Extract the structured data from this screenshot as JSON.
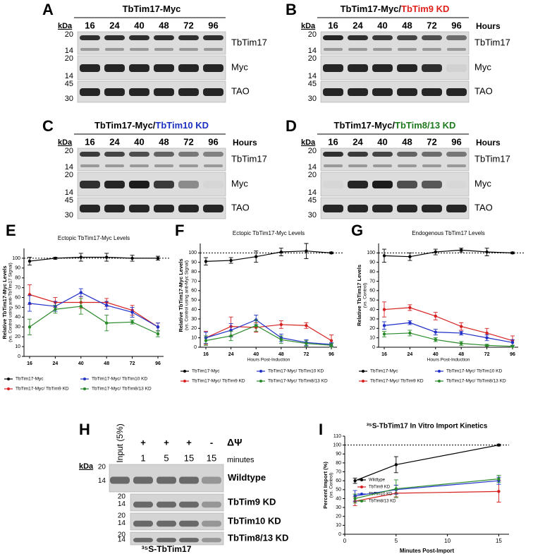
{
  "blots": [
    {
      "letter": "A",
      "title": [
        {
          "text": "TbTim17-Myc",
          "color": "#000000"
        }
      ],
      "unit": "kDa",
      "lanes": [
        "16",
        "24",
        "40",
        "48",
        "72",
        "96"
      ],
      "rows": [
        {
          "markers": [
            "20",
            "14"
          ],
          "label": "TbTim17"
        },
        {
          "markers": [
            "20",
            "14"
          ],
          "label": "Myc"
        },
        {
          "markers": [
            "45",
            "30"
          ],
          "label": "TAO"
        }
      ]
    },
    {
      "letter": "B",
      "title": [
        {
          "text": "TbTim17-Myc/",
          "color": "#000000"
        },
        {
          "text": "TbTim9 KD",
          "color": "#e0201b"
        }
      ],
      "unit": "kDa",
      "hours_label": "Hours",
      "lanes": [
        "16",
        "24",
        "40",
        "48",
        "72",
        "96"
      ],
      "rows": [
        {
          "markers": [
            "20",
            "14"
          ],
          "label": "TbTim17"
        },
        {
          "markers": [
            "20",
            "14"
          ],
          "label": "Myc"
        },
        {
          "markers": [
            "45",
            "30"
          ],
          "label": "TAO"
        }
      ]
    },
    {
      "letter": "C",
      "title": [
        {
          "text": "TbTim17-Myc/",
          "color": "#000000"
        },
        {
          "text": "TbTim10 KD",
          "color": "#1b2fc0"
        }
      ],
      "unit": "kDa",
      "hours_label": "Hours",
      "lanes": [
        "16",
        "24",
        "40",
        "48",
        "72",
        "96"
      ],
      "rows": [
        {
          "markers": [
            "20",
            "14"
          ],
          "label": "TbTim17"
        },
        {
          "markers": [
            "20",
            "14"
          ],
          "label": "Myc"
        },
        {
          "markers": [
            "45",
            "30"
          ],
          "label": "TAO"
        }
      ]
    },
    {
      "letter": "D",
      "title": [
        {
          "text": "TbTim17-Myc/",
          "color": "#000000"
        },
        {
          "text": "TbTim8/13 KD",
          "color": "#1f7a1f"
        }
      ],
      "unit": "kDa",
      "hours_label": "Hours",
      "lanes": [
        "16",
        "24",
        "40",
        "48",
        "72",
        "96"
      ],
      "rows": [
        {
          "markers": [
            "20",
            "14"
          ],
          "label": "TbTim17"
        },
        {
          "markers": [
            "20",
            "14"
          ],
          "label": "Myc"
        },
        {
          "markers": [
            "45",
            "30"
          ],
          "label": "TAO"
        }
      ]
    }
  ],
  "panel_h": {
    "letter": "H",
    "unit": "kDa",
    "input_label": "Input (5%)",
    "delta_psi": "ΔΨ",
    "psi_signs": [
      "+",
      "+",
      "+",
      "-"
    ],
    "minutes": [
      "1",
      "5",
      "15",
      "15"
    ],
    "minutes_label": "minutes",
    "rows": [
      {
        "markers": [
          "20",
          "14"
        ],
        "label": "Wildtype",
        "color": "#000000"
      },
      {
        "markers": [
          "20",
          "14"
        ],
        "label": "TbTim9 KD",
        "color": "#e0201b"
      },
      {
        "markers": [
          "20",
          "14"
        ],
        "label": "TbTim10 KD",
        "color": "#1b2fc0"
      },
      {
        "markers": [
          "20",
          "14"
        ],
        "label": "TbTim8/13 KD",
        "color": "#1f7a1f"
      }
    ],
    "footer": "³⁵S-TbTim17"
  },
  "chart_data": [
    {
      "type": "line",
      "letter": "E",
      "title": "Ectopic TbTim17-Myc Levels",
      "ylabel": [
        "Relative TbTim17-Myc Levels",
        "(vs. Control using anti-TbTim17 Signal)"
      ],
      "categories": [
        "16",
        "24",
        "40",
        "48",
        "72",
        "96"
      ],
      "ylim": [
        0,
        110
      ],
      "yticks": [
        0,
        10,
        20,
        30,
        40,
        50,
        60,
        70,
        80,
        90,
        100
      ],
      "ref_line": 100,
      "series": [
        {
          "name": "TbTim17-Myc",
          "color": "#000000",
          "values": [
            97,
            100,
            101,
            101,
            100,
            100
          ],
          "errors": [
            4,
            1,
            4,
            4,
            3,
            2
          ]
        },
        {
          "name": "TbTim17-Myc/ TbTim9 KD",
          "color": "#d62020",
          "values": [
            63,
            55,
            55,
            55,
            47,
            30
          ],
          "errors": [
            10,
            5,
            6,
            4,
            5,
            4
          ]
        },
        {
          "name": "TbTim17-Myc/ TbTim10 KD",
          "color": "#2030c8",
          "values": [
            54,
            51,
            65,
            52,
            45,
            30
          ],
          "errors": [
            8,
            5,
            4,
            4,
            5,
            4
          ]
        },
        {
          "name": "TbTim17-Myc/ TbTim8/13 KD",
          "color": "#2a8a2a",
          "values": [
            30,
            48,
            51,
            34,
            35,
            23
          ],
          "errors": [
            8,
            4,
            8,
            8,
            2,
            3
          ]
        }
      ]
    },
    {
      "type": "line",
      "letter": "F",
      "title": "Ectopic TbTim17-Myc Levels",
      "ylabel": [
        "Relative TbTim17-Myc Levels",
        "(vs. Control using anti-Myc Signal)"
      ],
      "xlabel": "Hours Post-Induction",
      "categories": [
        "16",
        "24",
        "40",
        "48",
        "72",
        "96"
      ],
      "ylim": [
        0,
        110
      ],
      "yticks": [
        0,
        10,
        20,
        30,
        40,
        50,
        60,
        70,
        80,
        90,
        100
      ],
      "ref_line": 100,
      "series": [
        {
          "name": "TbTim17-Myc",
          "color": "#000000",
          "values": [
            91,
            92,
            96,
            101,
            102,
            100
          ],
          "errors": [
            4,
            3,
            6,
            4,
            8,
            1
          ]
        },
        {
          "name": "TbTim17-Myc/ TbTim9 KD",
          "color": "#d62020",
          "values": [
            10,
            22,
            21,
            24,
            23,
            7
          ],
          "errors": [
            7,
            10,
            5,
            4,
            3,
            6
          ]
        },
        {
          "name": "TbTim17-Myc/ TbTim10 KD",
          "color": "#2030c8",
          "values": [
            10,
            18,
            29,
            10,
            5,
            3
          ],
          "errors": [
            6,
            7,
            5,
            4,
            3,
            2
          ]
        },
        {
          "name": "TbTim17-Myc/ TbTim8/13 KD",
          "color": "#2a8a2a",
          "values": [
            7,
            12,
            23,
            8,
            4,
            2
          ],
          "errors": [
            5,
            5,
            6,
            4,
            3,
            2
          ]
        }
      ]
    },
    {
      "type": "line",
      "letter": "G",
      "title": "Endogenous TbTim17 Levels",
      "ylabel": [
        "Relative TbTim17 Levels",
        "(vs. Control)"
      ],
      "xlabel": "Hours Post-Induction",
      "categories": [
        "16",
        "24",
        "40",
        "48",
        "72",
        "96"
      ],
      "ylim": [
        0,
        110
      ],
      "yticks": [
        0,
        10,
        20,
        30,
        40,
        50,
        60,
        70,
        80,
        90,
        100
      ],
      "ref_line": 100,
      "series": [
        {
          "name": "TbTim17-Myc",
          "color": "#000000",
          "values": [
            97,
            96,
            101,
            103,
            101,
            100
          ],
          "errors": [
            7,
            4,
            3,
            2,
            4,
            1
          ]
        },
        {
          "name": "TbTim17-Myc/ TbTim9 KD",
          "color": "#d62020",
          "values": [
            40,
            42,
            33,
            22,
            15,
            7
          ],
          "errors": [
            8,
            3,
            4,
            4,
            5,
            5
          ]
        },
        {
          "name": "TbTim17-Myc/ TbTim10 KD",
          "color": "#2030c8",
          "values": [
            23,
            26,
            16,
            15,
            10,
            5
          ],
          "errors": [
            4,
            2,
            3,
            2,
            3,
            3
          ]
        },
        {
          "name": "TbTim17-Myc/ TbTim8/13 KD",
          "color": "#2a8a2a",
          "values": [
            14,
            15,
            8,
            4,
            2,
            1
          ],
          "errors": [
            3,
            3,
            2,
            2,
            1,
            1
          ]
        }
      ]
    },
    {
      "type": "line",
      "letter": "I",
      "title": "³⁵S-TbTim17 In Vitro Import Kinetics",
      "ylabel": [
        "Percent Import (%)",
        "(vs. Control)"
      ],
      "xlabel": "Minutes Post-Import",
      "x": [
        1,
        5,
        15
      ],
      "xlim": [
        0,
        16
      ],
      "xticks": [
        0,
        5,
        10,
        15
      ],
      "ylim": [
        0,
        110
      ],
      "yticks": [
        0,
        10,
        20,
        30,
        40,
        50,
        60,
        70,
        80,
        90,
        100,
        110
      ],
      "ref_line": 100,
      "series": [
        {
          "name": "Wildtype",
          "color": "#000000",
          "values": [
            60,
            78,
            100
          ],
          "errors": [
            3,
            9,
            1
          ]
        },
        {
          "name": "TbTim9 KD",
          "color": "#d62020",
          "values": [
            37,
            46,
            48
          ],
          "errors": [
            5,
            4,
            12
          ]
        },
        {
          "name": "TbTim10 KD",
          "color": "#2030c8",
          "values": [
            43,
            50,
            60
          ],
          "errors": [
            6,
            5,
            4
          ]
        },
        {
          "name": "TbTim8/13 KD",
          "color": "#2a8a2a",
          "values": [
            40,
            51,
            62
          ],
          "errors": [
            5,
            10,
            4
          ]
        }
      ]
    }
  ]
}
